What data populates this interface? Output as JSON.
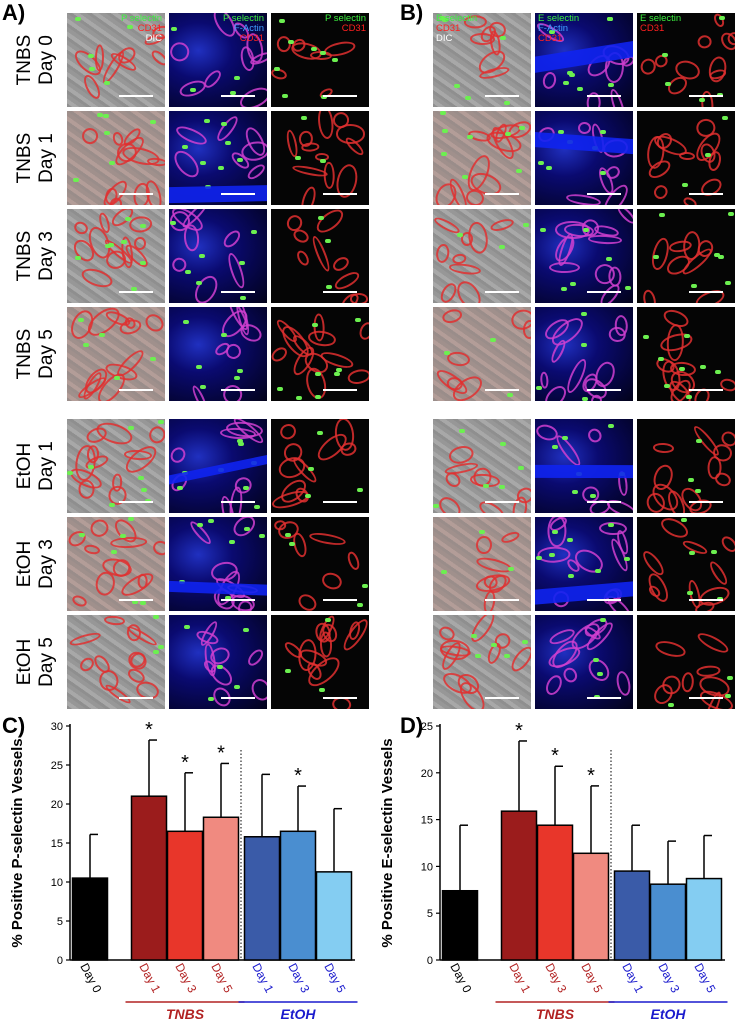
{
  "panel_letters": {
    "a": "A)",
    "b": "B)",
    "c": "C)",
    "d": "D)"
  },
  "row_labels": [
    [
      "TNBS",
      "Day 0"
    ],
    [
      "TNBS",
      "Day 1"
    ],
    [
      "TNBS",
      "Day 3"
    ],
    [
      "TNBS",
      "Day 5"
    ],
    [
      "EtOH",
      "Day 1"
    ],
    [
      "EtOH",
      "Day 3"
    ],
    [
      "EtOH",
      "Day 5"
    ]
  ],
  "panel_a_channels": {
    "col1": [
      "P selectin",
      "CD31",
      "DIC"
    ],
    "col2": [
      "P selectin",
      "F-Actin",
      "CD31"
    ],
    "col3": [
      "P selectin",
      "CD31"
    ]
  },
  "panel_b_channels": {
    "col1": [
      "E selectin",
      "CD31",
      "DIC"
    ],
    "col2": [
      "E selectin",
      "F-Actin",
      "CD31"
    ],
    "col3": [
      "E selectin",
      "CD31"
    ]
  },
  "chart_data": [
    {
      "type": "bar",
      "panel": "C)",
      "ylabel": "% Positive P-selectin Vessels",
      "ylim": [
        0,
        30
      ],
      "yticks": [
        0,
        5,
        10,
        15,
        20,
        25,
        30
      ],
      "categories": [
        "Day 0",
        "Day 1",
        "Day 3",
        "Day 5",
        "Day 1",
        "Day 3",
        "Day 5"
      ],
      "values": [
        10.5,
        21.0,
        16.5,
        18.3,
        15.8,
        16.5,
        11.3
      ],
      "errors": [
        5.6,
        7.2,
        7.5,
        6.9,
        8.0,
        5.8,
        8.1
      ],
      "significant": [
        false,
        true,
        true,
        true,
        false,
        true,
        false
      ],
      "colors": [
        "#000000",
        "#9b1c1c",
        "#e8362a",
        "#f08a80",
        "#3a5ba8",
        "#4a8ed0",
        "#84cdf2"
      ],
      "label_colors": [
        "#000000",
        "#b22222",
        "#b22222",
        "#b22222",
        "#1a1acd",
        "#1a1acd",
        "#1a1acd"
      ],
      "groups": [
        {
          "label": "TNBS",
          "color": "#b22222",
          "from": 1,
          "to": 3
        },
        {
          "label": "EtOH",
          "color": "#1a1acd",
          "from": 4,
          "to": 6
        }
      ],
      "star": "*"
    },
    {
      "type": "bar",
      "panel": "D)",
      "ylabel": "% Positive E-selectin Vessels",
      "ylim": [
        0,
        25
      ],
      "yticks": [
        0,
        5,
        10,
        15,
        20,
        25
      ],
      "categories": [
        "Day 0",
        "Day 1",
        "Day 3",
        "Day 5",
        "Day 1",
        "Day 3",
        "Day 5"
      ],
      "values": [
        7.4,
        15.9,
        14.4,
        11.4,
        9.5,
        8.1,
        8.7
      ],
      "errors": [
        7.0,
        7.5,
        6.3,
        7.2,
        4.9,
        4.6,
        4.6
      ],
      "significant": [
        false,
        true,
        true,
        true,
        false,
        false,
        false
      ],
      "colors": [
        "#000000",
        "#9b1c1c",
        "#e8362a",
        "#f08a80",
        "#3a5ba8",
        "#4a8ed0",
        "#84cdf2"
      ],
      "label_colors": [
        "#000000",
        "#b22222",
        "#b22222",
        "#b22222",
        "#1a1acd",
        "#1a1acd",
        "#1a1acd"
      ],
      "groups": [
        {
          "label": "TNBS",
          "color": "#b22222",
          "from": 1,
          "to": 3
        },
        {
          "label": "EtOH",
          "color": "#1a1acd",
          "from": 4,
          "to": 6
        }
      ],
      "star": "*"
    }
  ]
}
